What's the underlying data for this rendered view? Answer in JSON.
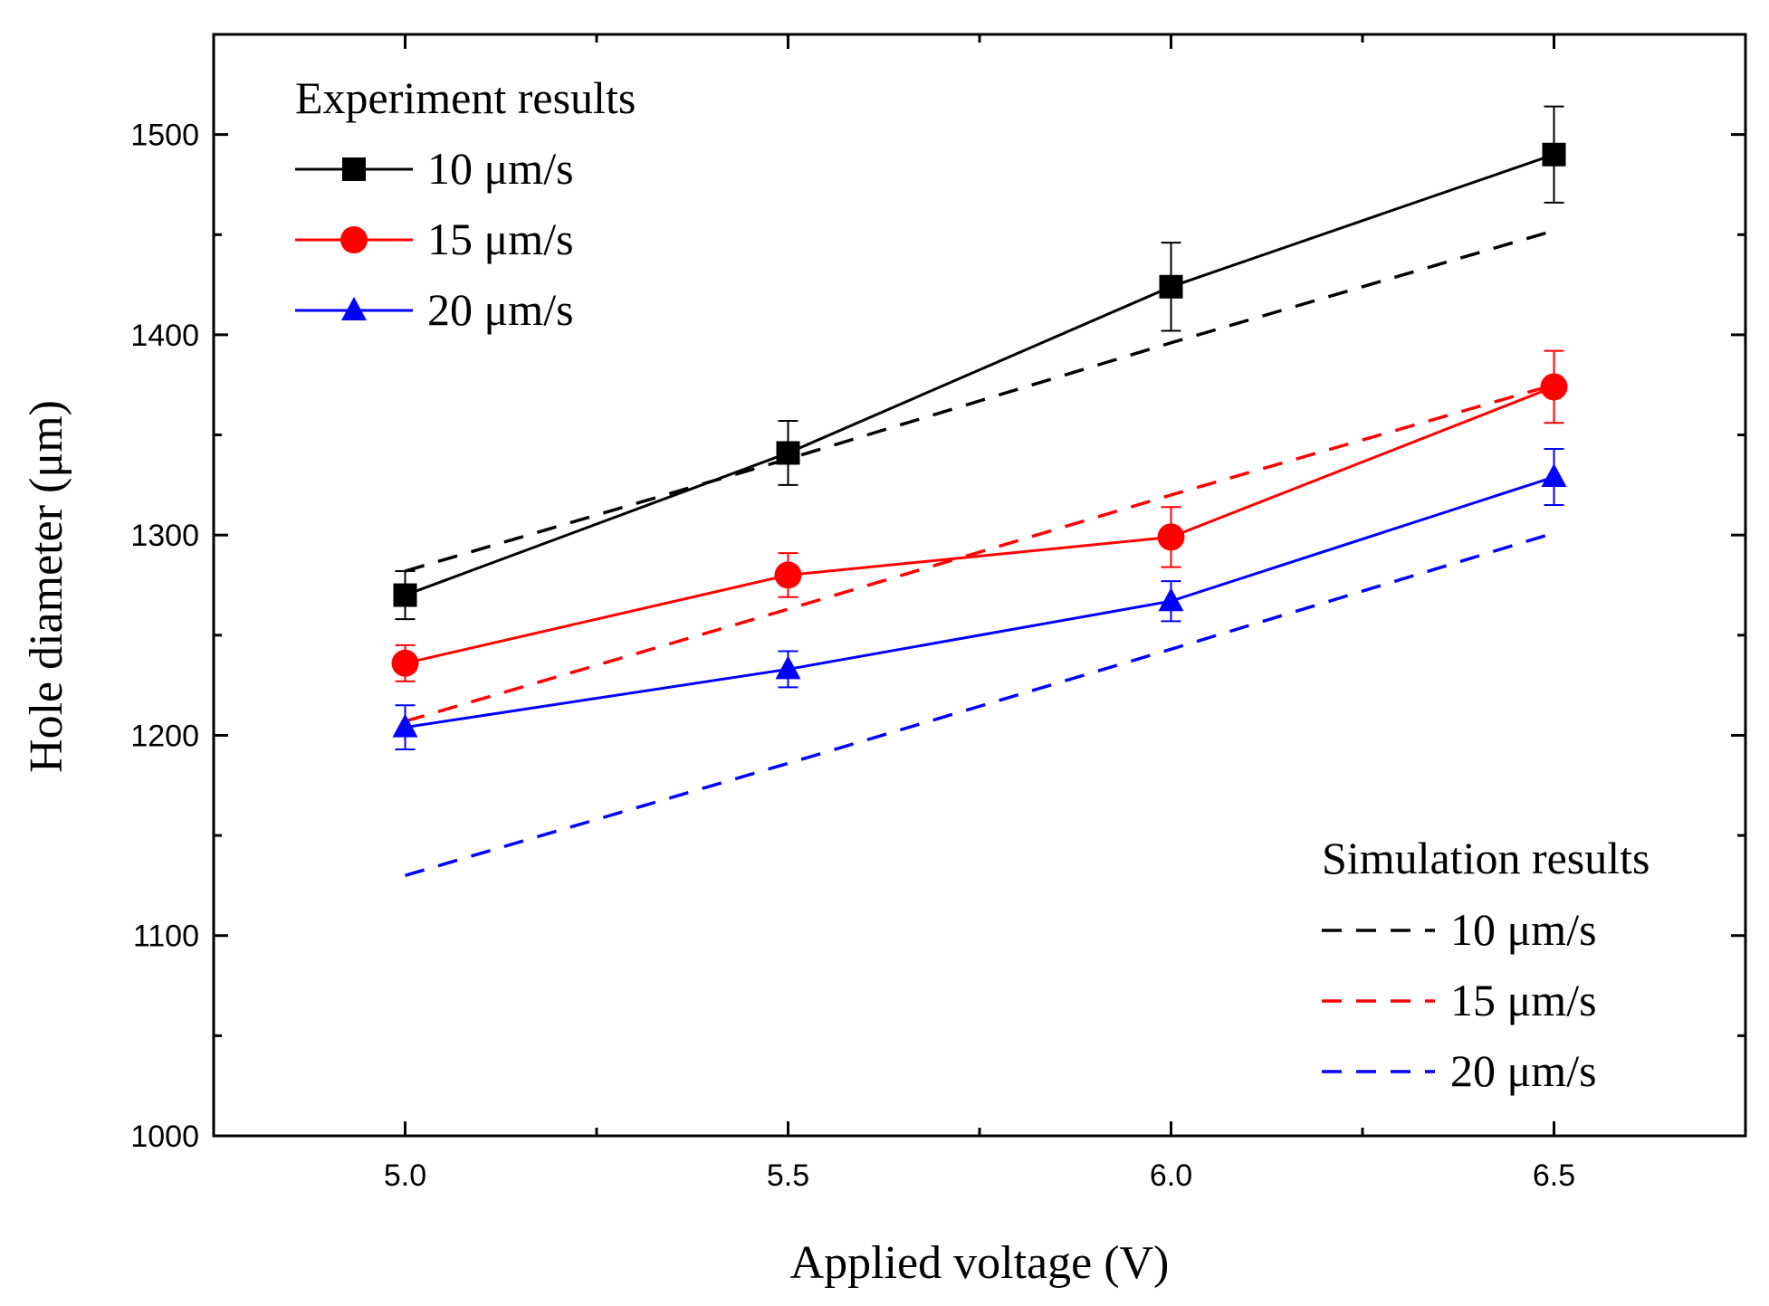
{
  "chart_data": {
    "type": "line",
    "xlabel": "Applied voltage (V)",
    "ylabel": "Hole diameter (μm)",
    "xlim": [
      4.75,
      6.75
    ],
    "ylim": [
      1000,
      1550
    ],
    "x": [
      5.0,
      5.5,
      6.0,
      6.5
    ],
    "x_ticks": [
      "5.0",
      "5.5",
      "6.0",
      "6.5"
    ],
    "y_ticks": [
      "1000",
      "1100",
      "1200",
      "1300",
      "1400",
      "1500"
    ],
    "legend_experiment_title": "Experiment results",
    "legend_simulation_title": "Simulation results",
    "experiment_series": [
      {
        "name": "10 μm/s",
        "color": "#000000",
        "marker": "square",
        "values": [
          1270,
          1341,
          1424,
          1490
        ],
        "errors": [
          12,
          16,
          22,
          24
        ]
      },
      {
        "name": "15 μm/s",
        "color": "#ff0000",
        "marker": "circle",
        "values": [
          1236,
          1280,
          1299,
          1374
        ],
        "errors": [
          9,
          11,
          15,
          18
        ]
      },
      {
        "name": "20 μm/s",
        "color": "#0000ff",
        "marker": "triangle",
        "values": [
          1204,
          1233,
          1267,
          1329
        ],
        "errors": [
          11,
          9,
          10,
          14
        ]
      }
    ],
    "simulation_series": [
      {
        "name": "10 μm/s",
        "color": "#000000",
        "values": [
          1282,
          1338,
          1396,
          1452
        ]
      },
      {
        "name": "15 μm/s",
        "color": "#ff0000",
        "values": [
          1207,
          1263,
          1320,
          1375
        ]
      },
      {
        "name": "20 μm/s",
        "color": "#0000ff",
        "values": [
          1130,
          1186,
          1243,
          1301
        ]
      }
    ]
  }
}
